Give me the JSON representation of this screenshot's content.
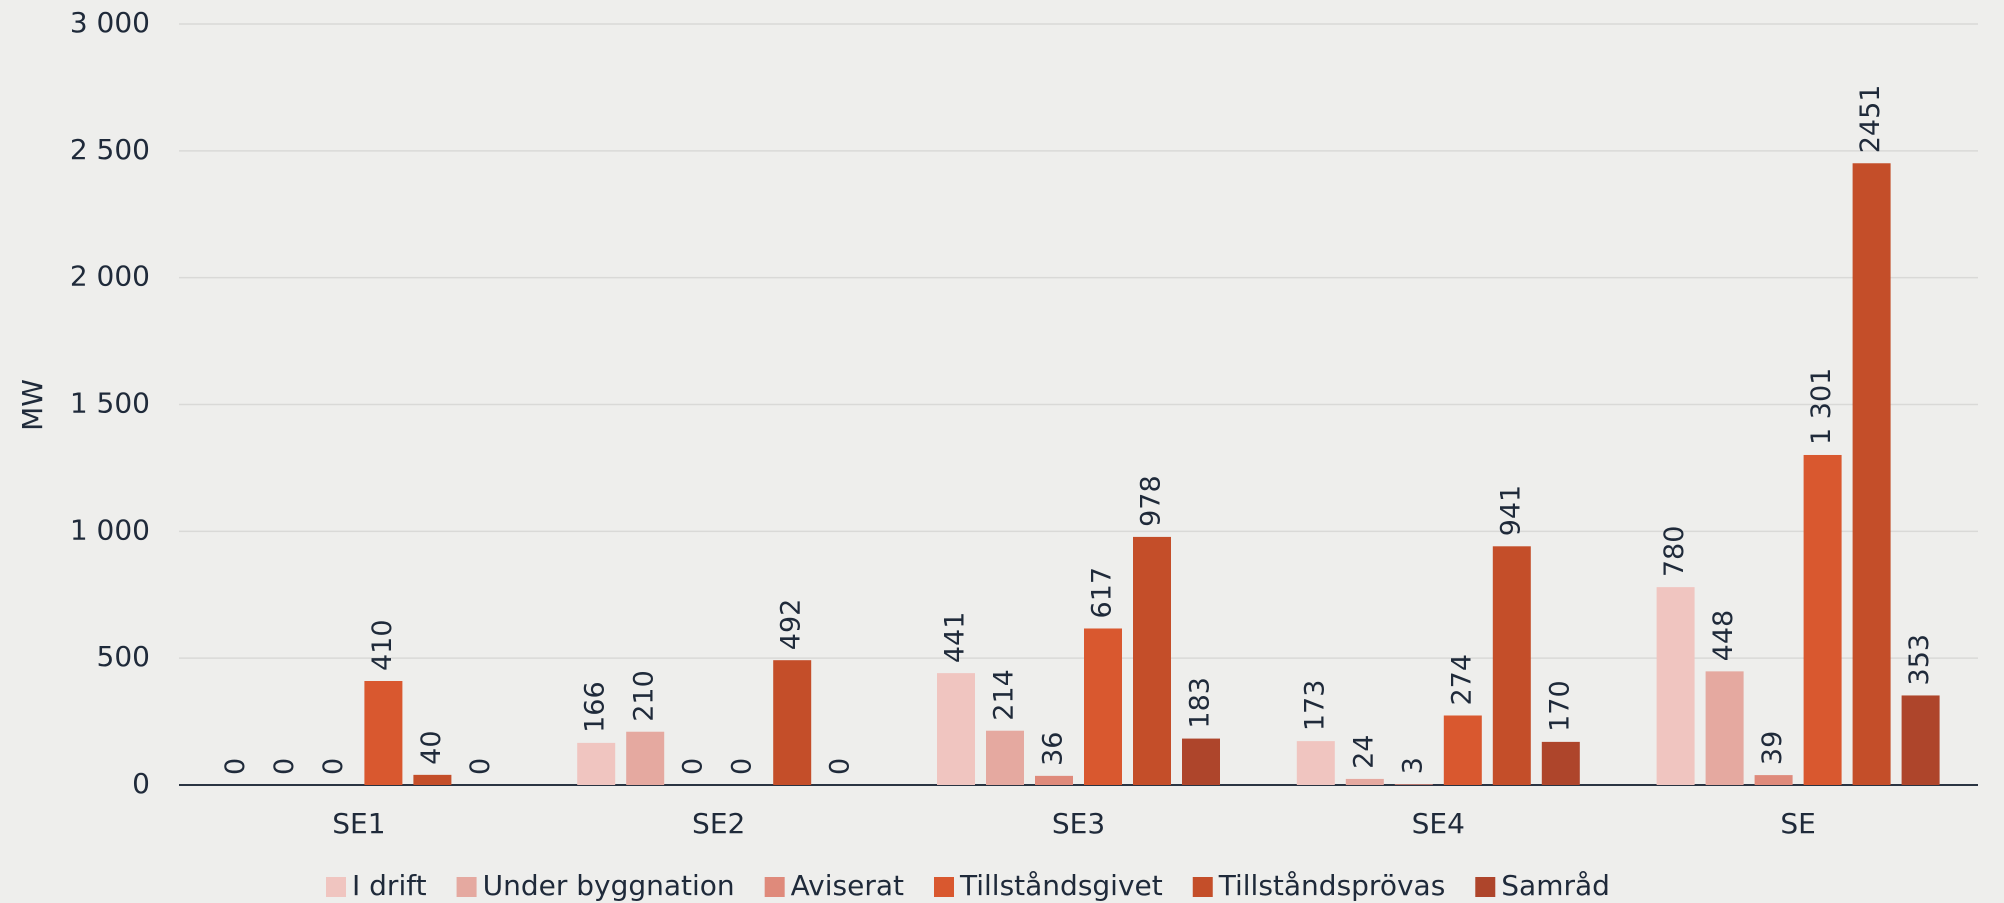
{
  "chart_data": {
    "type": "bar",
    "y_label": "MW",
    "categories": [
      "SE1",
      "SE2",
      "SE3",
      "SE4",
      "SE"
    ],
    "series": [
      {
        "name": "I drift",
        "color": "#f0c5c0",
        "values": [
          0,
          166,
          441,
          173,
          780
        ]
      },
      {
        "name": "Under byggnation",
        "color": "#e5a9a0",
        "values": [
          0,
          210,
          214,
          24,
          448
        ]
      },
      {
        "name": "Aviserat",
        "color": "#df8a7b",
        "values": [
          0,
          0,
          36,
          3,
          39
        ]
      },
      {
        "name": "Tillståndsgivet",
        "color": "#d9582f",
        "values": [
          410,
          0,
          617,
          274,
          1301
        ],
        "value_labels": [
          "410",
          "0",
          "617",
          "274",
          "1 301"
        ]
      },
      {
        "name": "Tillståndsprövas",
        "color": "#c44e29",
        "values": [
          40,
          492,
          978,
          941,
          2451
        ]
      },
      {
        "name": "Samråd",
        "color": "#ae452b",
        "values": [
          0,
          0,
          183,
          170,
          353
        ]
      }
    ],
    "ylim": [
      0,
      3000
    ],
    "yticks": [
      0,
      500,
      {
        "value": 1000,
        "label": "1 000"
      },
      {
        "value": 1500,
        "label": "1 500"
      },
      {
        "value": 2000,
        "label": "2 000"
      },
      {
        "value": 2500,
        "label": "2 500"
      },
      {
        "value": 3000,
        "label": "3 000"
      }
    ],
    "grid": true,
    "legend": "bottom"
  }
}
